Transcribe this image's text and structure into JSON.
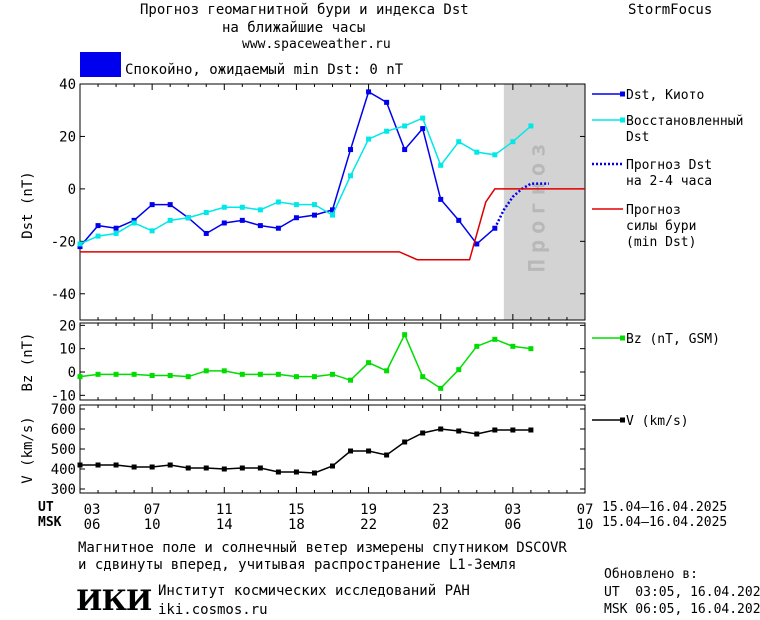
{
  "header": {
    "title_line1": "Прогноз геомагнитной бури и индекса Dst",
    "title_line2": "на ближайшие часы",
    "site": "www.spaceweather.ru",
    "brand": "StormFocus"
  },
  "status": {
    "text": "Спокойно, ожидаемый min Dst: 0 nT",
    "color": "#0000ee"
  },
  "forecast_band_text": "Прогноз",
  "time_axis": {
    "ut_label": "UT",
    "msk_label": "MSK",
    "ut_ticks": [
      "03",
      "07",
      "11",
      "15",
      "19",
      "23",
      "03",
      "07"
    ],
    "msk_ticks": [
      "06",
      "10",
      "14",
      "18",
      "22",
      "02",
      "06",
      "10"
    ],
    "range_ut": "15.04–16.04.2025",
    "range_msk": "15.04–16.04.2025"
  },
  "chart_data": [
    {
      "type": "line",
      "ylabel": "Dst (nT)",
      "ylim": [
        -50,
        40
      ],
      "yticks": [
        "40",
        "20",
        "0",
        "-20",
        "-40"
      ],
      "x_unit": "hours since 03 UT 15.04.2025",
      "xlim": [
        0,
        28
      ],
      "forecast_region": [
        23.5,
        28
      ],
      "series": [
        {
          "name": "Dst, Киото",
          "color": "#0000ee",
          "x": [
            0,
            1,
            2,
            3,
            4,
            5,
            6,
            7,
            8,
            9,
            10,
            11,
            12,
            13,
            14,
            15,
            16,
            17,
            18,
            19,
            20,
            21,
            22,
            23
          ],
          "values": [
            -22,
            -14,
            -15,
            -12,
            -6,
            -6,
            -11,
            -17,
            -13,
            -12,
            -14,
            -15,
            -11,
            -10,
            -8,
            15,
            37,
            33,
            15,
            23,
            -4,
            -12,
            -21,
            -15
          ]
        },
        {
          "name": "Восстановленный Dst",
          "color": "#00e8e8",
          "x": [
            0,
            1,
            2,
            3,
            4,
            5,
            6,
            7,
            8,
            9,
            10,
            11,
            12,
            13,
            14,
            15,
            16,
            17,
            18,
            19,
            20,
            21,
            22,
            23,
            24,
            25
          ],
          "values": [
            -21,
            -18,
            -17,
            -13,
            -16,
            -12,
            -11,
            -9,
            -7,
            -7,
            -8,
            -5,
            -6,
            -6,
            -10,
            5,
            19,
            22,
            24,
            27,
            9,
            18,
            14,
            13,
            18,
            24
          ]
        },
        {
          "name": "Прогноз Dst на 2-4 часа",
          "color": "#0000ee",
          "x": [
            23,
            23.5,
            24,
            24.5,
            25,
            25.5,
            26
          ],
          "values": [
            -15,
            -8,
            -3,
            0,
            2,
            2,
            2
          ]
        },
        {
          "name": "Прогноз силы бури (min Dst)",
          "color": "#dd0000",
          "x": [
            0,
            17.7,
            18.7,
            21.6,
            22.5,
            23,
            28
          ],
          "values": [
            -24,
            -24,
            -27,
            -27,
            -5,
            0,
            0
          ]
        }
      ],
      "legend": "right"
    },
    {
      "type": "line",
      "ylabel": "Bz (nT)",
      "ylim": [
        -12,
        21
      ],
      "yticks": [
        "20",
        "10",
        "0",
        "-10"
      ],
      "xlim": [
        0,
        28
      ],
      "series": [
        {
          "name": "Bz (nT, GSM)",
          "color": "#00dd00",
          "x": [
            0,
            1,
            2,
            3,
            4,
            5,
            6,
            7,
            8,
            9,
            10,
            11,
            12,
            13,
            14,
            15,
            16,
            17,
            18,
            19,
            20,
            21,
            22,
            23,
            24,
            25
          ],
          "values": [
            -2,
            -1,
            -1,
            -1,
            -1.5,
            -1.5,
            -2,
            0.5,
            0.5,
            -1,
            -1,
            -1,
            -2,
            -2,
            -1,
            -3.5,
            4,
            0.5,
            16,
            -2,
            -7,
            1,
            11,
            14,
            11,
            10
          ]
        }
      ],
      "legend": "right"
    },
    {
      "type": "line",
      "ylabel": "V (km/s)",
      "ylim": [
        280,
        720
      ],
      "yticks": [
        "700",
        "600",
        "500",
        "400",
        "300"
      ],
      "xlim": [
        0,
        28
      ],
      "series": [
        {
          "name": "V (km/s)",
          "color": "#000000",
          "x": [
            0,
            1,
            2,
            3,
            4,
            5,
            6,
            7,
            8,
            9,
            10,
            11,
            12,
            13,
            14,
            15,
            16,
            17,
            18,
            19,
            20,
            21,
            22,
            23,
            24,
            25
          ],
          "values": [
            420,
            420,
            420,
            410,
            410,
            420,
            405,
            405,
            400,
            405,
            405,
            385,
            385,
            380,
            415,
            490,
            490,
            470,
            535,
            580,
            600,
            590,
            575,
            595,
            595,
            595
          ]
        }
      ],
      "legend": "right"
    }
  ],
  "footer": {
    "note_line1": "Магнитное поле и солнечный ветер измерены спутником DSCOVR",
    "note_line2": "и сдвинуты вперед, учитывая распространение L1-Земля",
    "logo_text": "ИКИ",
    "institute": "Институт космических исследований РАН",
    "institute_url": "iki.cosmos.ru",
    "updated_label": "Обновлено в:",
    "updated_ut": "UT  03:05, 16.04.2025",
    "updated_msk": "MSK 06:05, 16.04.2025"
  }
}
